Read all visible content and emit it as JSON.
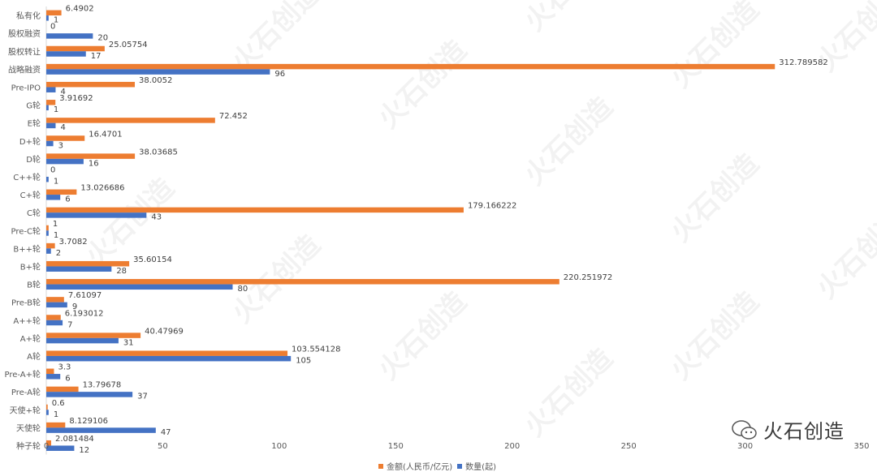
{
  "chart_data": {
    "type": "bar",
    "orientation": "horizontal",
    "categories": [
      "私有化",
      "股权融资",
      "股权转让",
      "战略融资",
      "Pre-IPO",
      "G轮",
      "E轮",
      "D+轮",
      "D轮",
      "C++轮",
      "C+轮",
      "C轮",
      "Pre-C轮",
      "B++轮",
      "B+轮",
      "B轮",
      "Pre-B轮",
      "A++轮",
      "A+轮",
      "A轮",
      "Pre-A+轮",
      "Pre-A轮",
      "天使+轮",
      "天使轮",
      "种子轮"
    ],
    "series": [
      {
        "name": "金额(人民币/亿元)",
        "color": "#ED7D31",
        "values": [
          6.4902,
          0,
          25.05754,
          312.789582,
          38.0052,
          3.91692,
          72.452,
          16.4701,
          38.03685,
          0,
          13.026686,
          179.166222,
          1,
          3.7082,
          35.60154,
          220.251972,
          7.61097,
          6.193012,
          40.47969,
          103.554128,
          3.3,
          13.79678,
          0.6,
          8.129106,
          2.081484
        ]
      },
      {
        "name": "数量(起)",
        "color": "#4472C4",
        "values": [
          1,
          20,
          17,
          96,
          4,
          1,
          4,
          3,
          16,
          1,
          6,
          43,
          1,
          2,
          28,
          80,
          9,
          7,
          31,
          105,
          6,
          37,
          1,
          47,
          12
        ]
      }
    ],
    "xlim": [
      0,
      350
    ],
    "xticks": [
      "0",
      "50",
      "100",
      "150",
      "200",
      "250",
      "300",
      "350"
    ],
    "legend": "bottom",
    "grid": false
  },
  "brand": {
    "name": "火石创造"
  }
}
